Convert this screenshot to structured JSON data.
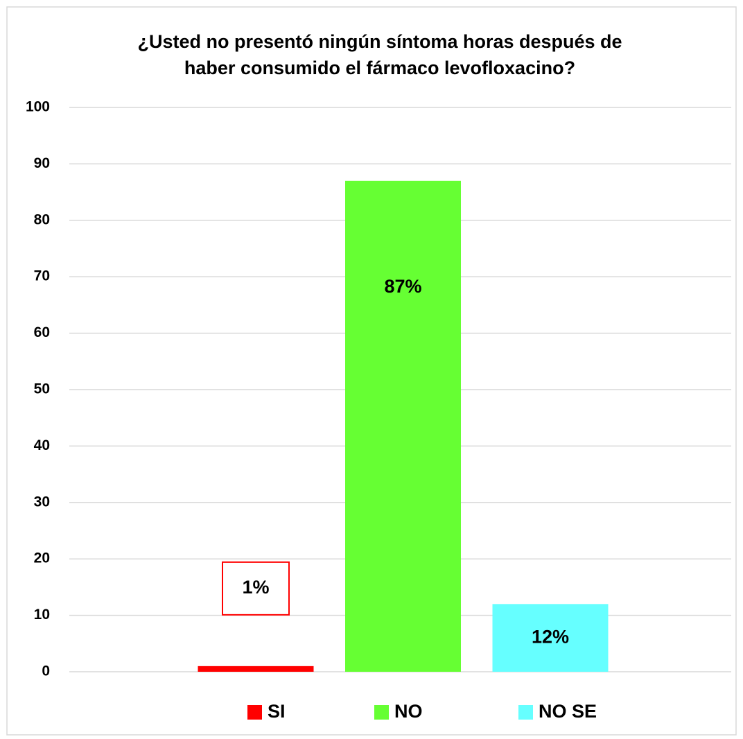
{
  "chart_data": {
    "type": "bar",
    "title_lines": [
      "¿Usted no presentó ningún síntoma horas después de",
      "haber consumido el fármaco levofloxacino?"
    ],
    "categories": [
      null
    ],
    "series": [
      {
        "name": "SI",
        "color": "#ff0000",
        "values": [
          1
        ],
        "value_labels": [
          "1%"
        ]
      },
      {
        "name": "NO",
        "color": "#66ff33",
        "values": [
          87
        ],
        "value_labels": [
          "87%"
        ]
      },
      {
        "name": "NO SE",
        "color": "#66ffff",
        "values": [
          12
        ],
        "value_labels": [
          "12%"
        ]
      }
    ],
    "ylim": [
      0,
      100
    ],
    "yticks": [
      0,
      10,
      20,
      30,
      40,
      50,
      60,
      70,
      80,
      90,
      100
    ],
    "grid": true,
    "legend": "bottom"
  }
}
